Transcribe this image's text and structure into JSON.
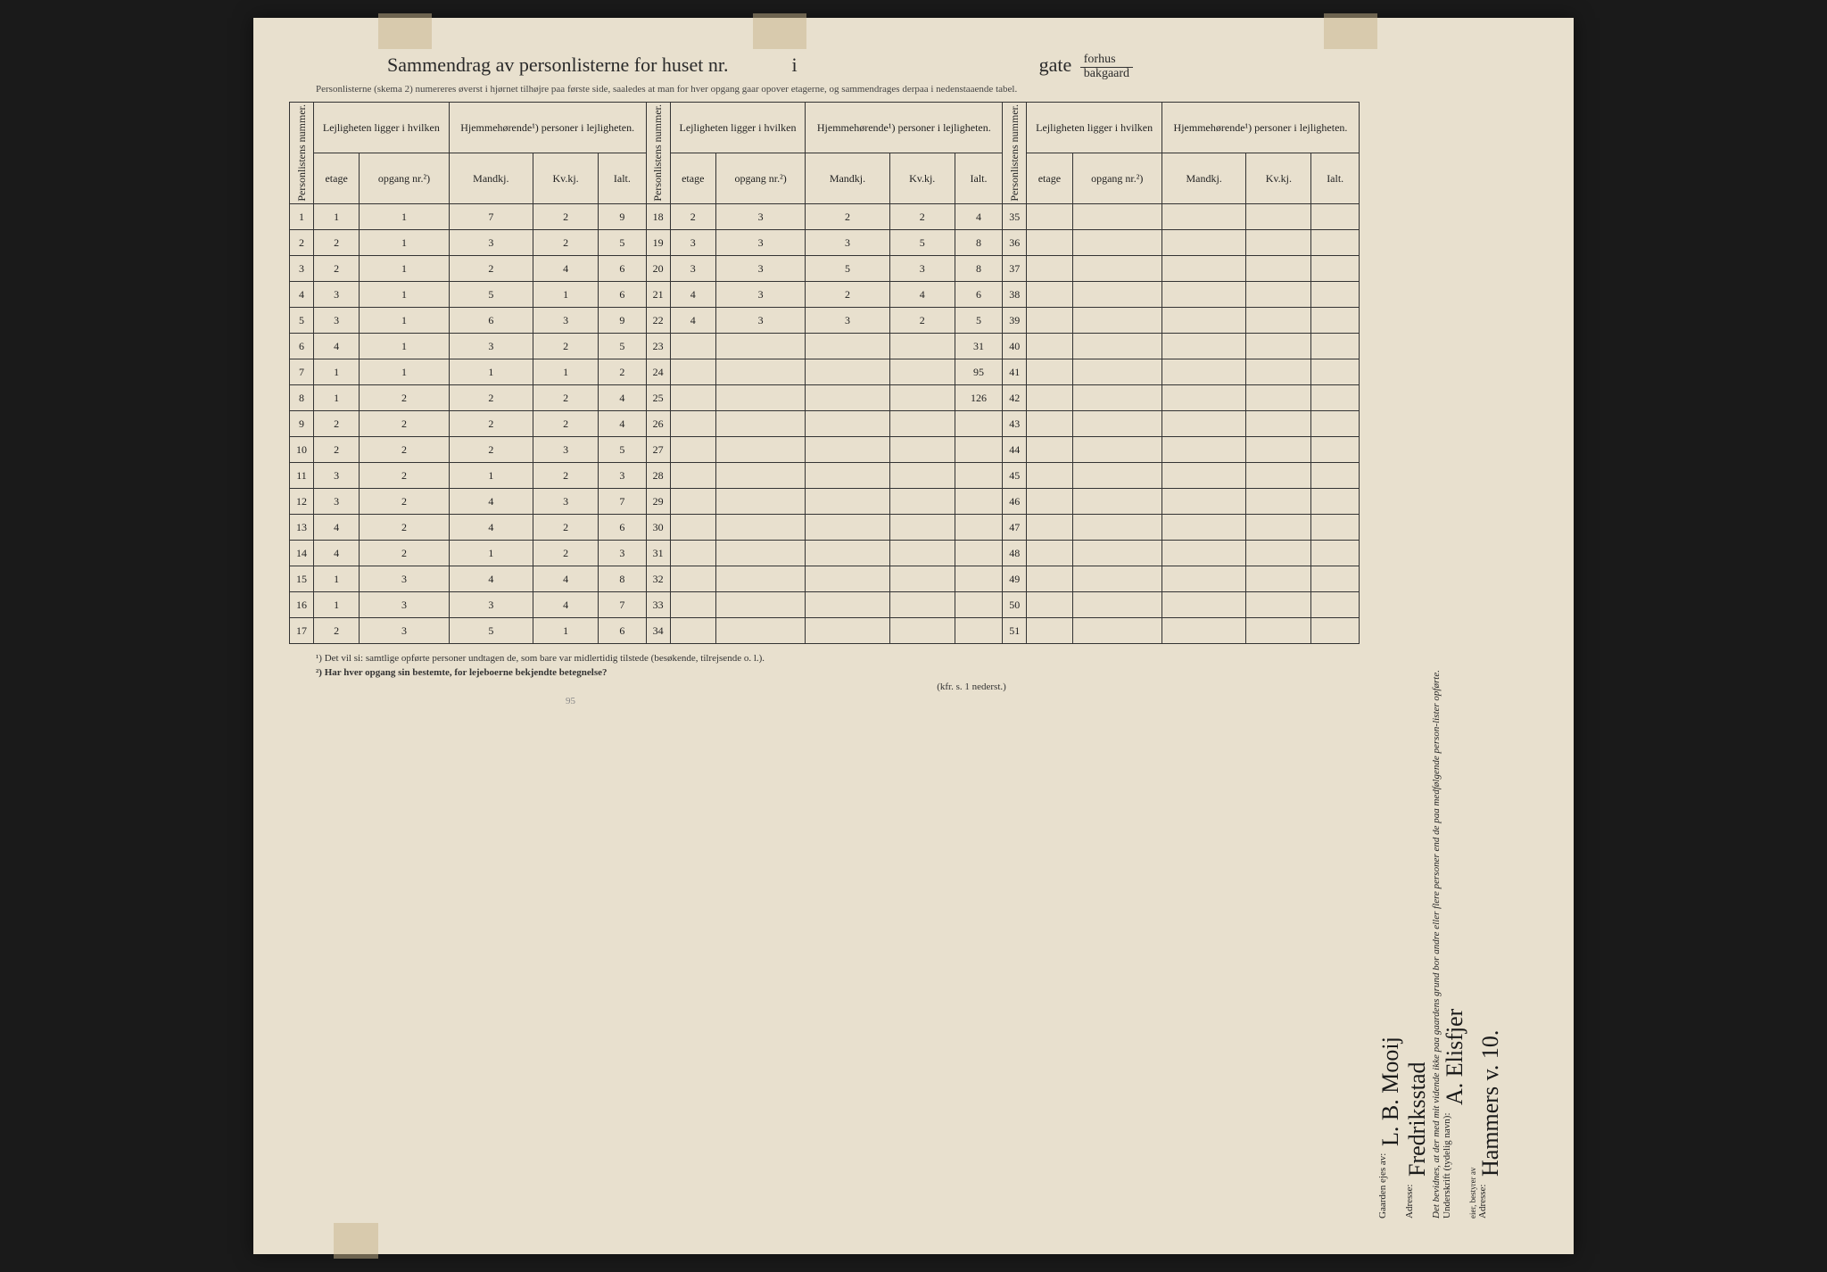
{
  "header": {
    "title_prefix": "Sammendrag av personlisterne for huset nr.",
    "title_mid": "i",
    "title_gate": "gate",
    "frac_top": "forhus",
    "frac_bot": "bakgaard",
    "subtitle": "Personlisterne (skema 2) numereres øverst i hjørnet tilhøjre paa første side, saaledes at man for hver opgang gaar opover etagerne, og sammendrages derpaa i nedenstaaende tabel."
  },
  "columns": {
    "personlistens": "Personlistens nummer.",
    "lejlighet_group": "Lejligheten ligger i hvilken",
    "hjemme_group": "Hjemmehørende¹) personer i lejligheten.",
    "etage": "etage",
    "opgang": "opgang nr.²)",
    "mandkj": "Mandkj.",
    "kvkj": "Kv.kj.",
    "ialt": "Ialt."
  },
  "rows_block1": [
    {
      "n": "1",
      "etage": "1",
      "opg": "1",
      "m": "7",
      "k": "2",
      "i": "9"
    },
    {
      "n": "2",
      "etage": "2",
      "opg": "1",
      "m": "3",
      "k": "2",
      "i": "5"
    },
    {
      "n": "3",
      "etage": "2",
      "opg": "1",
      "m": "2",
      "k": "4",
      "i": "6"
    },
    {
      "n": "4",
      "etage": "3",
      "opg": "1",
      "m": "5",
      "k": "1",
      "i": "6"
    },
    {
      "n": "5",
      "etage": "3",
      "opg": "1",
      "m": "6",
      "k": "3",
      "i": "9"
    },
    {
      "n": "6",
      "etage": "4",
      "opg": "1",
      "m": "3",
      "k": "2",
      "i": "5"
    },
    {
      "n": "7",
      "etage": "1",
      "opg": "1",
      "m": "1",
      "k": "1",
      "i": "2"
    },
    {
      "n": "8",
      "etage": "1",
      "opg": "2",
      "m": "2",
      "k": "2",
      "i": "4"
    },
    {
      "n": "9",
      "etage": "2",
      "opg": "2",
      "m": "2",
      "k": "2",
      "i": "4"
    },
    {
      "n": "10",
      "etage": "2",
      "opg": "2",
      "m": "2",
      "k": "3",
      "i": "5"
    },
    {
      "n": "11",
      "etage": "3",
      "opg": "2",
      "m": "1",
      "k": "2",
      "i": "3"
    },
    {
      "n": "12",
      "etage": "3",
      "opg": "2",
      "m": "4",
      "k": "3",
      "i": "7"
    },
    {
      "n": "13",
      "etage": "4",
      "opg": "2",
      "m": "4",
      "k": "2",
      "i": "6"
    },
    {
      "n": "14",
      "etage": "4",
      "opg": "2",
      "m": "1",
      "k": "2",
      "i": "3"
    },
    {
      "n": "15",
      "etage": "1",
      "opg": "3",
      "m": "4",
      "k": "4",
      "i": "8"
    },
    {
      "n": "16",
      "etage": "1",
      "opg": "3",
      "m": "3",
      "k": "4",
      "i": "7"
    },
    {
      "n": "17",
      "etage": "2",
      "opg": "3",
      "m": "5",
      "k": "1",
      "i": "6"
    }
  ],
  "rows_block2": [
    {
      "n": "18",
      "etage": "2",
      "opg": "3",
      "m": "2",
      "k": "2",
      "i": "4"
    },
    {
      "n": "19",
      "etage": "3",
      "opg": "3",
      "m": "3",
      "k": "5",
      "i": "8"
    },
    {
      "n": "20",
      "etage": "3",
      "opg": "3",
      "m": "5",
      "k": "3",
      "i": "8"
    },
    {
      "n": "21",
      "etage": "4",
      "opg": "3",
      "m": "2",
      "k": "4",
      "i": "6"
    },
    {
      "n": "22",
      "etage": "4",
      "opg": "3",
      "m": "3",
      "k": "2",
      "i": "5"
    },
    {
      "n": "23",
      "etage": "",
      "opg": "",
      "m": "",
      "k": "",
      "i": ""
    },
    {
      "n": "24",
      "etage": "",
      "opg": "",
      "m": "",
      "k": "",
      "i": ""
    },
    {
      "n": "25",
      "etage": "",
      "opg": "",
      "m": "",
      "k": "",
      "i": ""
    },
    {
      "n": "26",
      "etage": "",
      "opg": "",
      "m": "",
      "k": "",
      "i": ""
    },
    {
      "n": "27",
      "etage": "",
      "opg": "",
      "m": "",
      "k": "",
      "i": ""
    },
    {
      "n": "28",
      "etage": "",
      "opg": "",
      "m": "",
      "k": "",
      "i": ""
    },
    {
      "n": "29",
      "etage": "",
      "opg": "",
      "m": "",
      "k": "",
      "i": ""
    },
    {
      "n": "30",
      "etage": "",
      "opg": "",
      "m": "",
      "k": "",
      "i": ""
    },
    {
      "n": "31",
      "etage": "",
      "opg": "",
      "m": "",
      "k": "",
      "i": ""
    },
    {
      "n": "32",
      "etage": "",
      "opg": "",
      "m": "",
      "k": "",
      "i": ""
    },
    {
      "n": "33",
      "etage": "",
      "opg": "",
      "m": "",
      "k": "",
      "i": ""
    },
    {
      "n": "34",
      "etage": "",
      "opg": "",
      "m": "",
      "k": "",
      "i": ""
    }
  ],
  "rows_block3_numbers": [
    "35",
    "36",
    "37",
    "38",
    "39",
    "40",
    "41",
    "42",
    "43",
    "44",
    "45",
    "46",
    "47",
    "48",
    "49",
    "50",
    "51"
  ],
  "faint_notes": {
    "r6": "31",
    "r7": "95",
    "r8": "126"
  },
  "footnotes": {
    "f1": "¹)  Det vil si: samtlige opførte personer undtagen de, som bare var midlertidig tilstede (besøkende, tilrejsende o. l.).",
    "f2": "²)  Har hver opgang sin bestemte, for lejeboerne bekjendte betegnelse?",
    "kfr": "(kfr. s. 1 nederst.)",
    "pencil": "95"
  },
  "sidebar": {
    "attest": "Det bevidnes, at der med mit vidende ikke paa gaardens grund bor andre eller flere personer end de paa medfølgende person-lister opførte.",
    "underskrift_label": "Underskrift (tydelig navn):",
    "underskrift_sig": "A. Elisfjer",
    "bestyrer": "eier, bestyrer av",
    "adresse1_label": "Adresse:",
    "adresse1_val": "Hammers v. 10.",
    "gaarden_label": "Gaarden ejes av:",
    "gaarden_sig": "L. B. Mooij",
    "adresse2_label": "Adresse:",
    "adresse2_val": "Fredriksstad"
  },
  "colors": {
    "paper": "#e8e0ce",
    "ink": "#2a2a2a",
    "hand_ink": "#2a3a6a",
    "border": "#333333"
  }
}
